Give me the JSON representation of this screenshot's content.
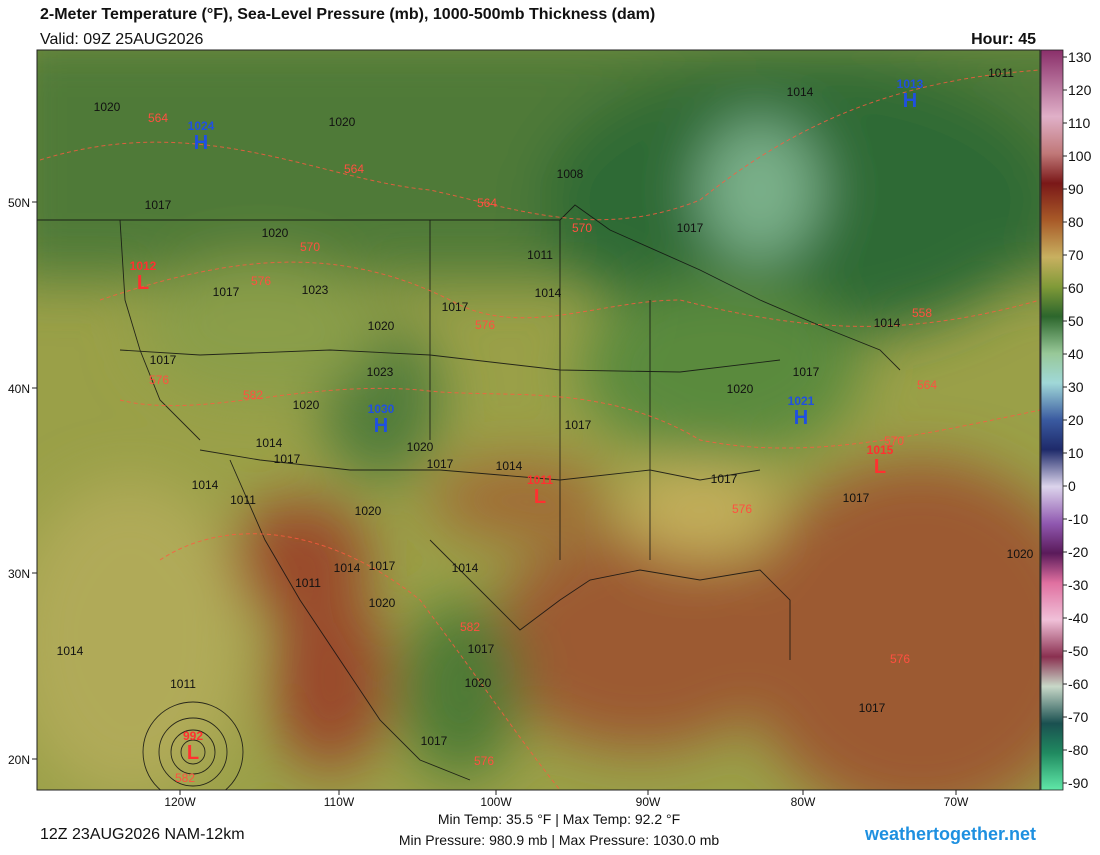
{
  "header": {
    "title": "2-Meter Temperature (°F), Sea-Level Pressure (mb), 1000-500mb Thickness (dam)",
    "valid": "Valid: 09Z 25AUG2026",
    "hour": "Hour: 45"
  },
  "colorbar": {
    "ticks": [
      130,
      120,
      110,
      100,
      90,
      80,
      70,
      60,
      50,
      40,
      30,
      20,
      10,
      0,
      -10,
      -20,
      -30,
      -40,
      -50,
      -60,
      -70,
      -80,
      -90
    ]
  },
  "axes": {
    "lat": [
      "50N",
      "40N",
      "30N",
      "20N"
    ],
    "lon": [
      "120W",
      "110W",
      "100W",
      "90W",
      "80W",
      "70W"
    ]
  },
  "map_labels": {
    "pressure": [
      1020,
      1020,
      1008,
      1017,
      1020,
      1011,
      1014,
      1017,
      1023,
      1017,
      1020,
      1017,
      1023,
      1020,
      1020,
      1017,
      1017,
      1014,
      1017,
      1020,
      1017,
      1014,
      1014,
      1011,
      1020,
      1017,
      1017,
      1014,
      1017,
      1014,
      1011,
      1020,
      1017,
      1020,
      1014,
      1011,
      1017,
      1014,
      1011,
      1017,
      1014,
      1017,
      1020
    ],
    "thickness": [
      564,
      564,
      564,
      570,
      570,
      576,
      576,
      576,
      582,
      576,
      582,
      576,
      582,
      576,
      558,
      564,
      570
    ],
    "centers": [
      {
        "label": "H",
        "value": 1024
      },
      {
        "label": "H",
        "value": 1030
      },
      {
        "label": "H",
        "value": 1013
      },
      {
        "label": "H",
        "value": 1021
      },
      {
        "label": "L",
        "value": 1012
      },
      {
        "label": "L",
        "value": 1011
      },
      {
        "label": "L",
        "value": 1015
      },
      {
        "label": "L",
        "value": 992
      }
    ]
  },
  "footer": {
    "run": "12Z 23AUG2026 NAM-12km",
    "temps": "Min Temp:  35.5 °F | Max Temp:  92.2 °F",
    "pressures": "Min Pressure: 980.9 mb | Max Pressure: 1030.0 mb",
    "site": "weathertogether.net"
  }
}
